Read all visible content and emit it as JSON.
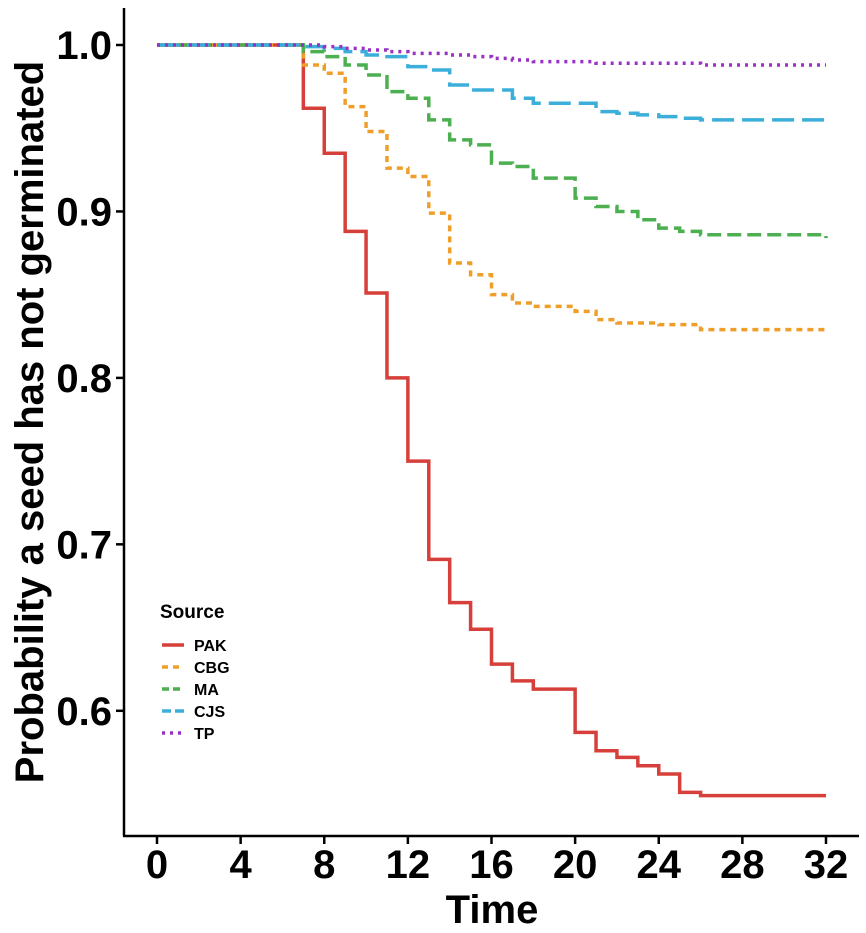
{
  "chart_data": {
    "type": "line",
    "step": true,
    "xlabel": "Time",
    "ylabel": "Probability a seed has not germinated",
    "xlim": [
      0,
      32
    ],
    "ylim": [
      0.547,
      1.0
    ],
    "x_ticks": [
      0,
      4,
      8,
      12,
      16,
      20,
      24,
      28,
      32
    ],
    "y_ticks": [
      0.6,
      0.7,
      0.8,
      0.9,
      1.0
    ],
    "y_tick_labels": [
      "0.6",
      "0.7",
      "0.8",
      "0.9",
      "1.0"
    ],
    "grid": false,
    "legend": {
      "title": "Source",
      "position": "bottom-left"
    },
    "series": [
      {
        "name": "PAK",
        "color": "#D7403A",
        "dash": "solid",
        "x": [
          0,
          7,
          8,
          9,
          10,
          11,
          12,
          13,
          14,
          15,
          16,
          17,
          18,
          19,
          20,
          21,
          22,
          23,
          24,
          25,
          26,
          32
        ],
        "y": [
          1.0,
          0.962,
          0.935,
          0.888,
          0.851,
          0.8,
          0.75,
          0.691,
          0.665,
          0.649,
          0.628,
          0.618,
          0.613,
          0.613,
          0.587,
          0.576,
          0.572,
          0.567,
          0.562,
          0.551,
          0.549,
          0.549
        ]
      },
      {
        "name": "CBG",
        "color": "#EF9F29",
        "dash": "6,5",
        "x": [
          0,
          7,
          8,
          9,
          10,
          11,
          12,
          13,
          14,
          15,
          16,
          17,
          18,
          19,
          20,
          21,
          22,
          23,
          24,
          25,
          26,
          32
        ],
        "y": [
          1.0,
          0.988,
          0.983,
          0.963,
          0.948,
          0.926,
          0.921,
          0.899,
          0.869,
          0.862,
          0.85,
          0.845,
          0.843,
          0.843,
          0.84,
          0.835,
          0.833,
          0.833,
          0.832,
          0.832,
          0.829,
          0.829
        ]
      },
      {
        "name": "MA",
        "color": "#4CAF50",
        "dash": "14,6",
        "x": [
          0,
          7,
          8,
          9,
          10,
          11,
          12,
          13,
          14,
          15,
          16,
          17,
          18,
          19,
          20,
          21,
          22,
          23,
          24,
          25,
          26,
          32
        ],
        "y": [
          1.0,
          0.996,
          0.993,
          0.988,
          0.982,
          0.972,
          0.968,
          0.955,
          0.943,
          0.94,
          0.929,
          0.927,
          0.92,
          0.92,
          0.908,
          0.903,
          0.9,
          0.895,
          0.89,
          0.888,
          0.886,
          0.884
        ]
      },
      {
        "name": "CJS",
        "color": "#3BAFDA",
        "dash": "22,8",
        "x": [
          0,
          7,
          8,
          9,
          10,
          11,
          12,
          13,
          14,
          15,
          16,
          17,
          18,
          19,
          20,
          21,
          22,
          23,
          24,
          25,
          26,
          32
        ],
        "y": [
          1.0,
          0.999,
          0.998,
          0.996,
          0.994,
          0.993,
          0.987,
          0.985,
          0.976,
          0.973,
          0.973,
          0.968,
          0.965,
          0.965,
          0.965,
          0.96,
          0.959,
          0.958,
          0.957,
          0.956,
          0.955,
          0.954
        ]
      },
      {
        "name": "TP",
        "color": "#9B30C4",
        "dash": "3,5",
        "x": [
          0,
          7,
          8,
          9,
          10,
          11,
          12,
          13,
          14,
          15,
          16,
          17,
          18,
          19,
          20,
          21,
          22,
          23,
          24,
          25,
          26,
          32
        ],
        "y": [
          1.0,
          1.0,
          0.999,
          0.998,
          0.997,
          0.996,
          0.995,
          0.995,
          0.994,
          0.993,
          0.992,
          0.991,
          0.99,
          0.99,
          0.99,
          0.989,
          0.989,
          0.989,
          0.989,
          0.989,
          0.988,
          0.988
        ]
      }
    ]
  }
}
